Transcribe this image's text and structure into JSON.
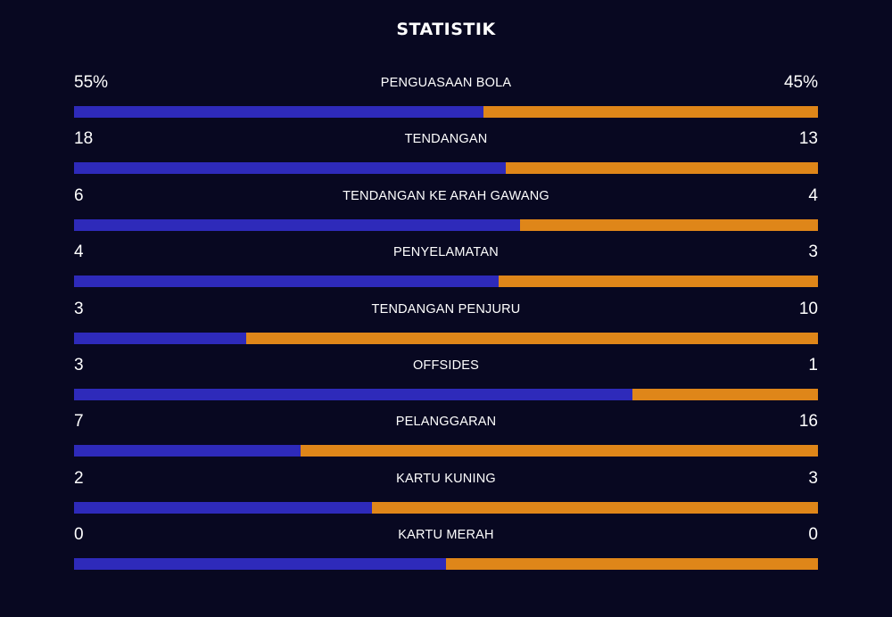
{
  "title": "STATISTIK",
  "colors": {
    "background": "#080821",
    "home": "#2e2aba",
    "away": "#df8619"
  },
  "stats": [
    {
      "label": "PENGUASAAN BOLA",
      "left": "55%",
      "right": "45%",
      "home_share": 0.55
    },
    {
      "label": "TENDANGAN",
      "left": "18",
      "right": "13",
      "home_share": 0.58
    },
    {
      "label": "TENDANGAN KE ARAH GAWANG",
      "left": "6",
      "right": "4",
      "home_share": 0.6
    },
    {
      "label": "PENYELAMATAN",
      "left": "4",
      "right": "3",
      "home_share": 0.571
    },
    {
      "label": "TENDANGAN PENJURU",
      "left": "3",
      "right": "10",
      "home_share": 0.231
    },
    {
      "label": "OFFSIDES",
      "left": "3",
      "right": "1",
      "home_share": 0.75
    },
    {
      "label": "PELANGGARAN",
      "left": "7",
      "right": "16",
      "home_share": 0.304
    },
    {
      "label": "KARTU KUNING",
      "left": "2",
      "right": "3",
      "home_share": 0.4
    },
    {
      "label": "KARTU MERAH",
      "left": "0",
      "right": "0",
      "home_share": 0.5
    }
  ]
}
